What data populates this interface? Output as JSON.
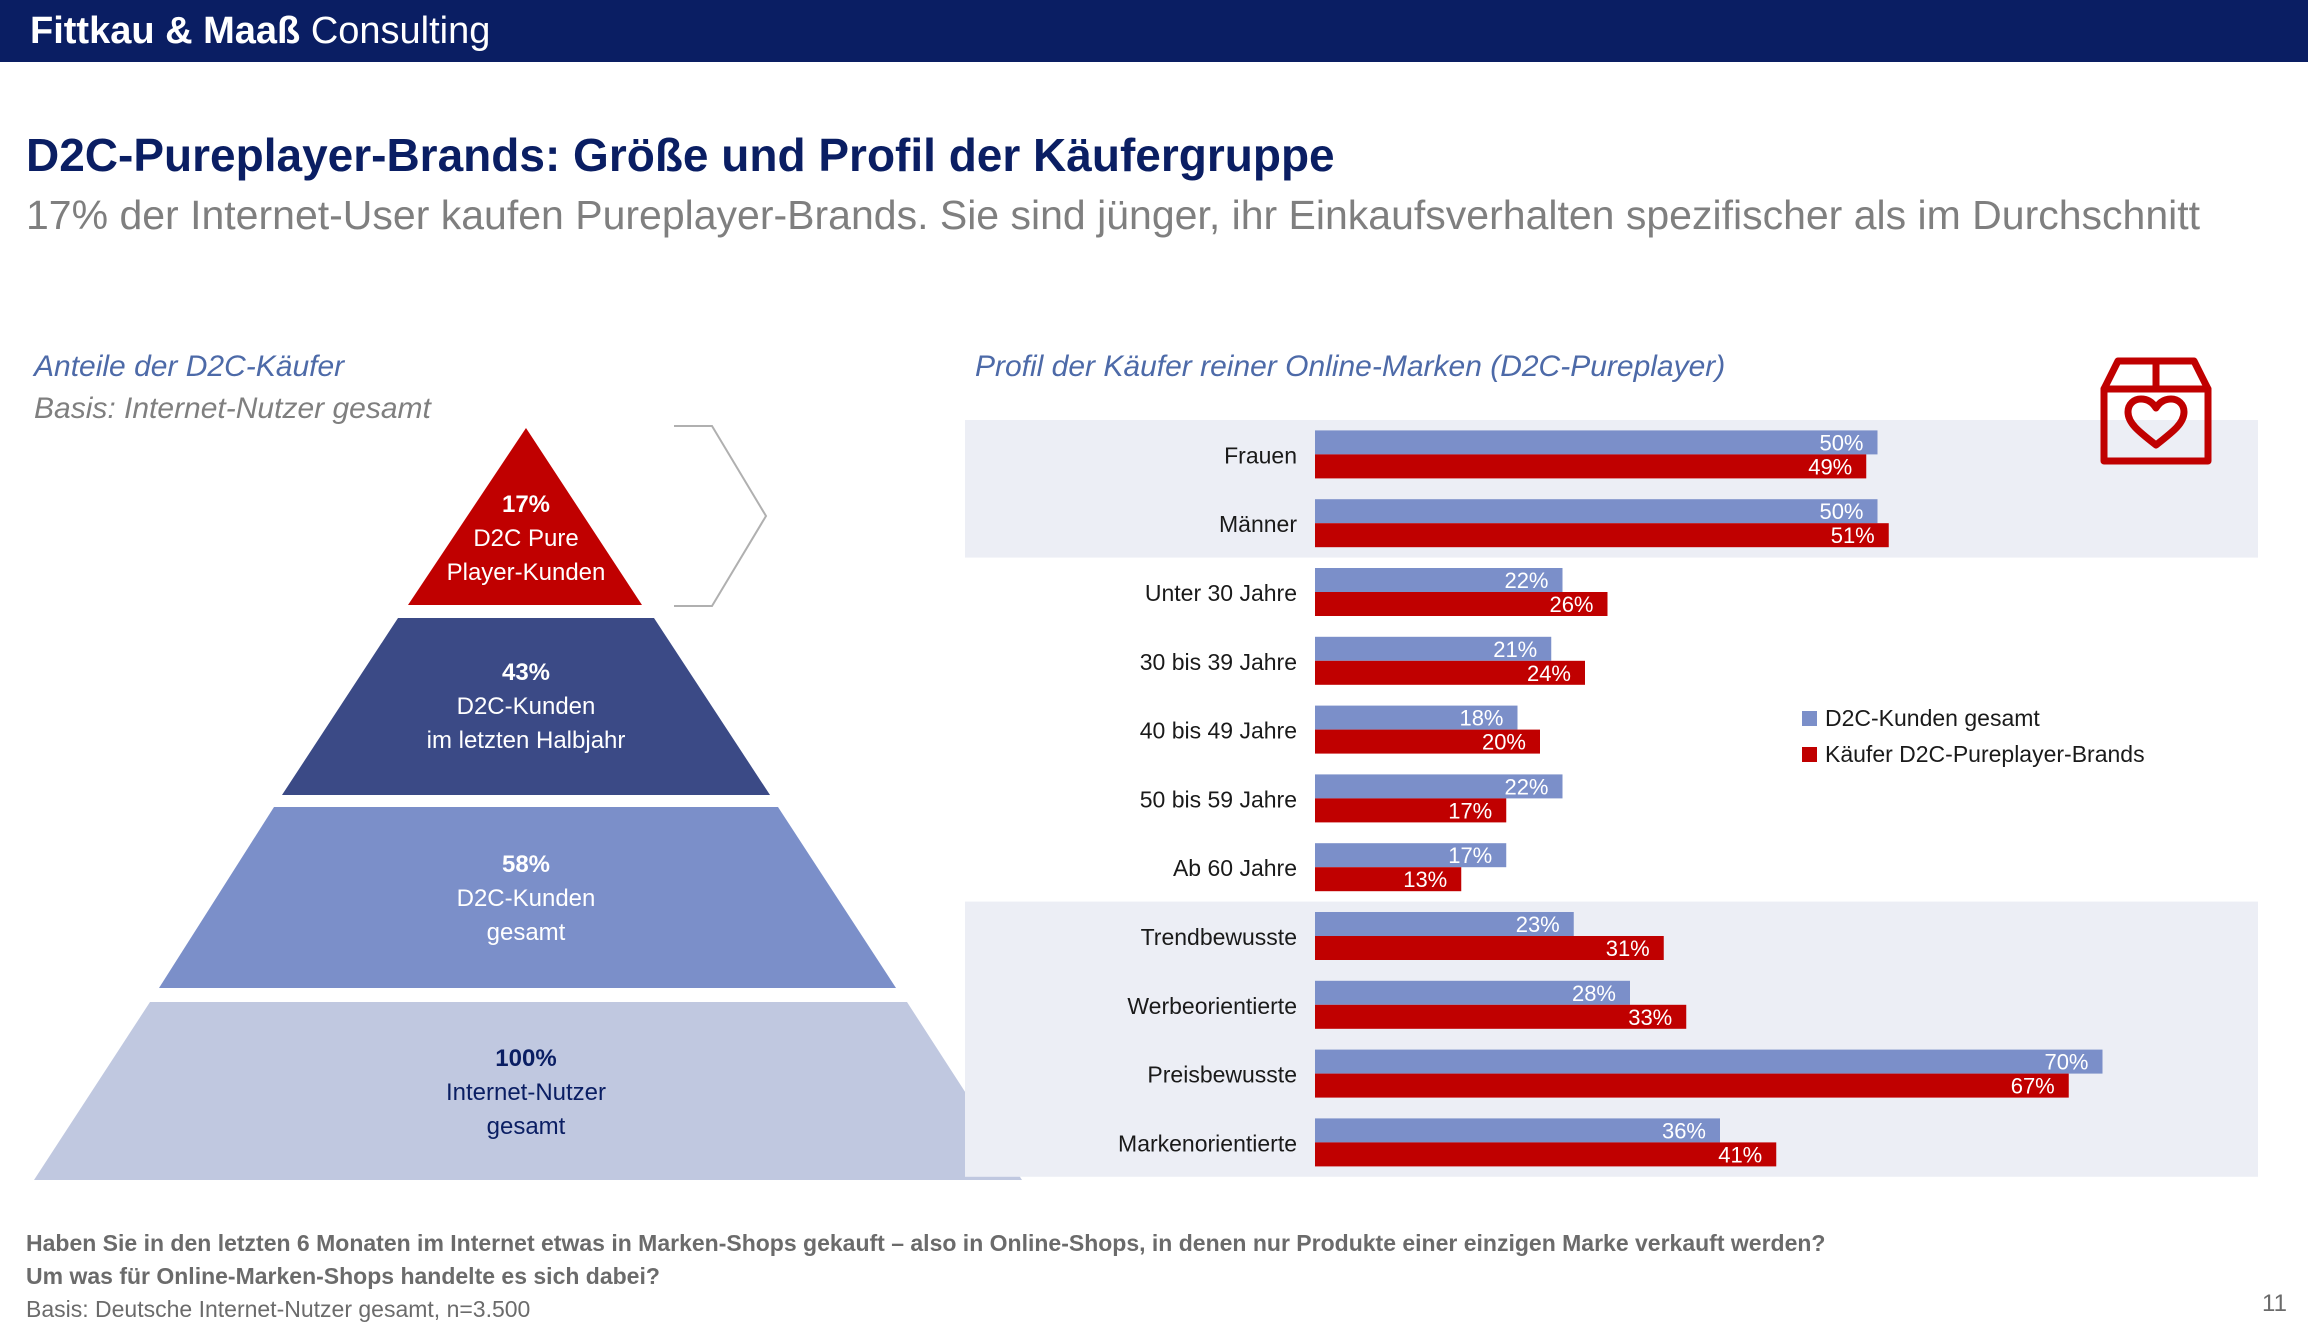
{
  "header": {
    "brand_bold": "Fittkau & Maaß",
    "brand_light": "Consulting"
  },
  "title": "D2C-Pureplayer-Brands: Größe und Profil der Käufergruppe",
  "subtitle": "17% der Internet-User kaufen Pureplayer-Brands. Sie sind jünger, ihr Einkaufsverhalten spezifischer als im Durchschnitt",
  "left_panel": {
    "heading": "Anteile der D2C-Käufer",
    "basis": "Basis: Internet-Nutzer gesamt"
  },
  "right_panel": {
    "heading": "Profil der Käufer reiner Online-Marken (D2C-Pureplayer)"
  },
  "colors": {
    "navy": "#0a1e63",
    "blue_dark": "#3b4a86",
    "blue_mid": "#7b8fc9",
    "blue_light": "#c0c8e0",
    "red": "#c00000",
    "band": "#eceef5"
  },
  "pyramid": [
    {
      "pct": "17%",
      "line1": "D2C Pure",
      "line2": "Player-Kunden",
      "color": "#c00000",
      "text_color": "#ffffff"
    },
    {
      "pct": "43%",
      "line1": "D2C-Kunden",
      "line2": "im letzten Halbjahr",
      "color": "#3b4a86",
      "text_color": "#ffffff"
    },
    {
      "pct": "58%",
      "line1": "D2C-Kunden",
      "line2": "gesamt",
      "color": "#7b8fc9",
      "text_color": "#ffffff"
    },
    {
      "pct": "100%",
      "line1": "Internet-Nutzer",
      "line2": "gesamt",
      "color": "#c0c8e0",
      "text_color": "#0a1e63"
    }
  ],
  "chart_data": {
    "type": "bar",
    "orientation": "horizontal",
    "categories": [
      "Frauen",
      "Männer",
      "Unter 30 Jahre",
      "30 bis 39 Jahre",
      "40 bis 49 Jahre",
      "50 bis 59 Jahre",
      "Ab 60 Jahre",
      "Trendbewusste",
      "Werbeorientierte",
      "Preisbewusste",
      "Markenorientierte"
    ],
    "series": [
      {
        "name": "D2C-Kunden gesamt",
        "color": "#7b8fc9",
        "values": [
          50,
          50,
          22,
          21,
          18,
          22,
          17,
          23,
          28,
          70,
          36
        ]
      },
      {
        "name": "Käufer D2C-Pureplayer-Brands",
        "color": "#c00000",
        "values": [
          49,
          51,
          26,
          24,
          20,
          17,
          13,
          31,
          33,
          67,
          41
        ]
      }
    ],
    "value_suffix": "%",
    "xlim": [
      0,
      100
    ],
    "legend_position": "right",
    "grid": false
  },
  "footnote": {
    "question1": "Haben Sie in den letzten 6 Monaten im Internet etwas in Marken-Shops gekauft – also in Online-Shops, in denen nur Produkte einer einzigen Marke verkauft werden?",
    "question2": "Um was für Online-Marken-Shops handelte es sich dabei?",
    "basis": "Basis: Deutsche Internet-Nutzer gesamt, n=3.500"
  },
  "page_number": "11",
  "icons": {
    "box": "heart-box-icon",
    "bracket": "bracket-arrow-icon"
  }
}
